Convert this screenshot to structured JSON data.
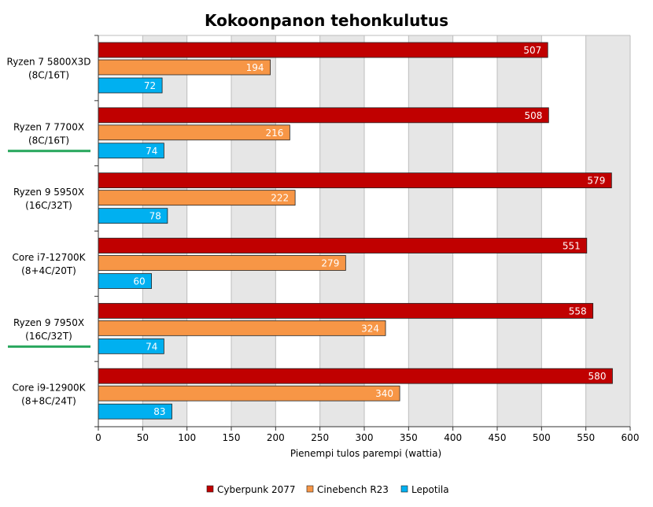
{
  "chart_data": {
    "type": "bar",
    "orientation": "horizontal",
    "title": "Kokoonpanon tehonkulutus",
    "xlabel": "Pienempi tulos parempi (wattia)",
    "ylabel": "",
    "xlim": [
      0,
      600
    ],
    "x_ticks": [
      0,
      50,
      100,
      150,
      200,
      250,
      300,
      350,
      400,
      450,
      500,
      550,
      600
    ],
    "grid": true,
    "legend_position": "bottom",
    "categories": [
      {
        "line1": "Ryzen 7 5800X3D",
        "line2": "(8C/16T)",
        "highlighted": false
      },
      {
        "line1": "Ryzen 7 7700X",
        "line2": "(8C/16T)",
        "highlighted": true
      },
      {
        "line1": "Ryzen 9 5950X",
        "line2": "(16C/32T)",
        "highlighted": false
      },
      {
        "line1": "Core i7-12700K",
        "line2": "(8+4C/20T)",
        "highlighted": false
      },
      {
        "line1": "Ryzen 9 7950X",
        "line2": "(16C/32T)",
        "highlighted": true
      },
      {
        "line1": "Core i9-12900K",
        "line2": "(8+8C/24T)",
        "highlighted": false
      }
    ],
    "series": [
      {
        "name": "Cyberpunk 2077",
        "color": "#c00000",
        "values": [
          507,
          508,
          579,
          551,
          558,
          580
        ]
      },
      {
        "name": "Cinebench R23",
        "color": "#f79646",
        "values": [
          194,
          216,
          222,
          279,
          324,
          340
        ]
      },
      {
        "name": "Lepotila",
        "color": "#00b0f0",
        "values": [
          72,
          74,
          78,
          60,
          74,
          83
        ]
      }
    ],
    "highlight_color": "#26a65b"
  }
}
